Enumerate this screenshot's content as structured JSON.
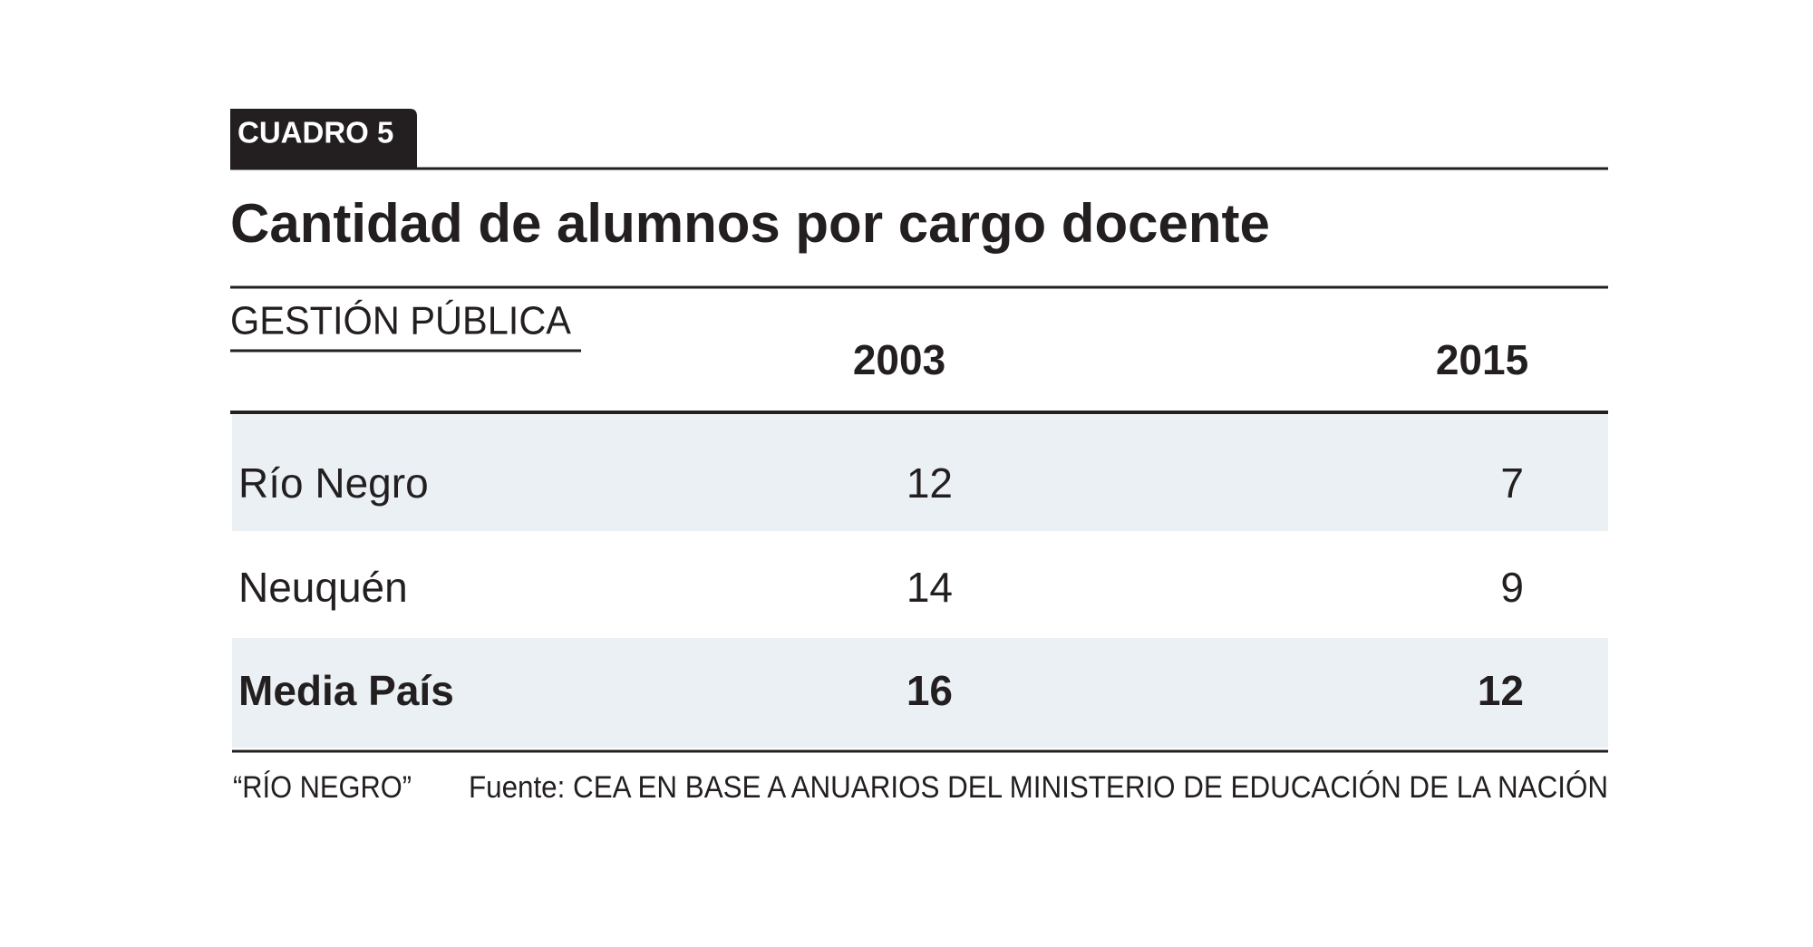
{
  "header": {
    "label": "CUADRO 5",
    "title": "Cantidad de alumnos por cargo docente"
  },
  "table": {
    "section": "GESTIÓN PÚBLICA",
    "columns": [
      "2003",
      "2015"
    ],
    "rows": [
      {
        "label": "Río Negro",
        "values": [
          12,
          7
        ]
      },
      {
        "label": "Neuquén",
        "values": [
          14,
          9
        ]
      },
      {
        "label": "Media País",
        "values": [
          16,
          12
        ]
      }
    ]
  },
  "footer": {
    "note": "“RÍO NEGRO”",
    "source": "Fuente: CEA EN BASE A ANUARIOS DEL MINISTERIO DE EDUCACIÓN DE LA NACIÓN"
  }
}
